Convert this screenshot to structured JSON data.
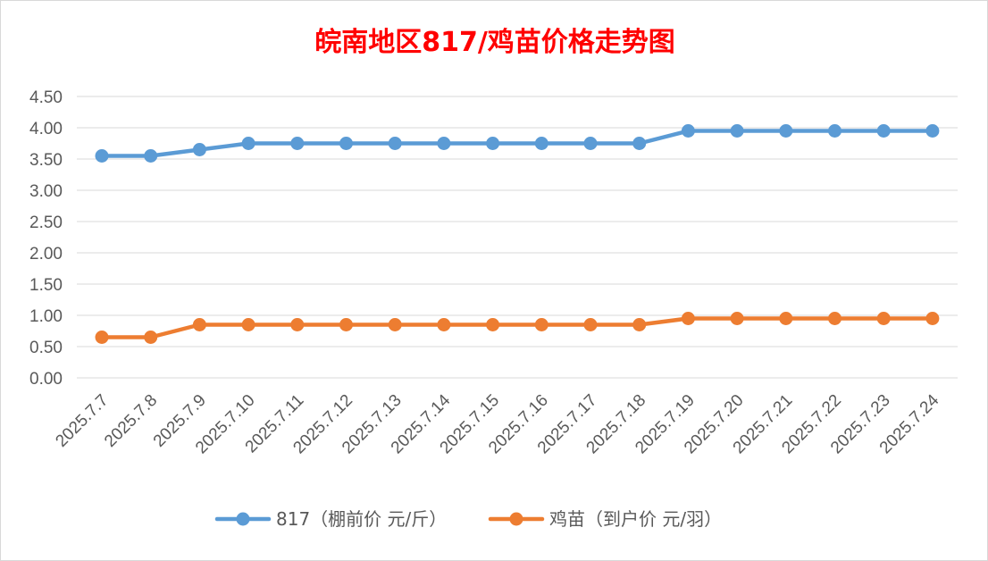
{
  "chart_data": {
    "type": "line",
    "title": "皖南地区817/鸡苗价格走势图",
    "xlabel": "",
    "ylabel": "",
    "categories": [
      "2025.7.7",
      "2025.7.8",
      "2025.7.9",
      "2025.7.10",
      "2025.7.11",
      "2025.7.12",
      "2025.7.13",
      "2025.7.14",
      "2025.7.15",
      "2025.7.16",
      "2025.7.17",
      "2025.7.18",
      "2025.7.19",
      "2025.7.20",
      "2025.7.21",
      "2025.7.22",
      "2025.7.23",
      "2025.7.24"
    ],
    "ylim": [
      0,
      4.5
    ],
    "yticks": [
      "0.00",
      "0.50",
      "1.00",
      "1.50",
      "2.00",
      "2.50",
      "3.00",
      "3.50",
      "4.00",
      "4.50"
    ],
    "grid": true,
    "legend_position": "bottom",
    "title_color": "#ff0000",
    "series": [
      {
        "name": "817（棚前价 元/斤）",
        "color": "#5b9bd5",
        "values": [
          3.55,
          3.55,
          3.65,
          3.75,
          3.75,
          3.75,
          3.75,
          3.75,
          3.75,
          3.75,
          3.75,
          3.75,
          3.95,
          3.95,
          3.95,
          3.95,
          3.95,
          3.95
        ]
      },
      {
        "name": "鸡苗（到户价 元/羽）",
        "color": "#ed7d31",
        "values": [
          0.65,
          0.65,
          0.85,
          0.85,
          0.85,
          0.85,
          0.85,
          0.85,
          0.85,
          0.85,
          0.85,
          0.85,
          0.95,
          0.95,
          0.95,
          0.95,
          0.95,
          0.95
        ]
      }
    ]
  }
}
